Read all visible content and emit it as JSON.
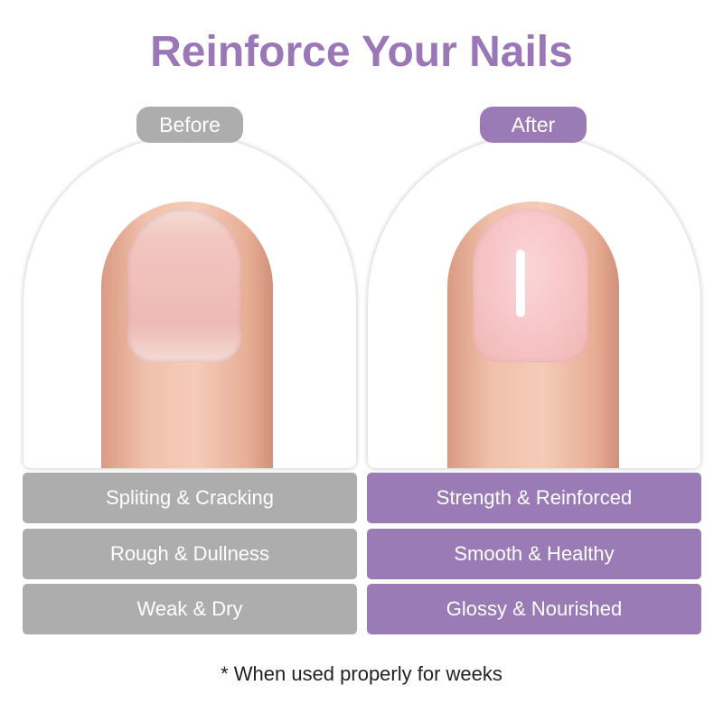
{
  "title": "Reinforce Your Nails",
  "before": {
    "label": "Before",
    "items": [
      "Spliting & Cracking",
      "Rough & Dullness",
      "Weak & Dry"
    ]
  },
  "after": {
    "label": "After",
    "items": [
      "Strength & Reinforced",
      "Smooth & Healthy",
      "Glossy & Nourished"
    ]
  },
  "footnote": "* When used properly for weeks",
  "colors": {
    "accent": "#9a7bb5",
    "neutral": "#adadad"
  }
}
